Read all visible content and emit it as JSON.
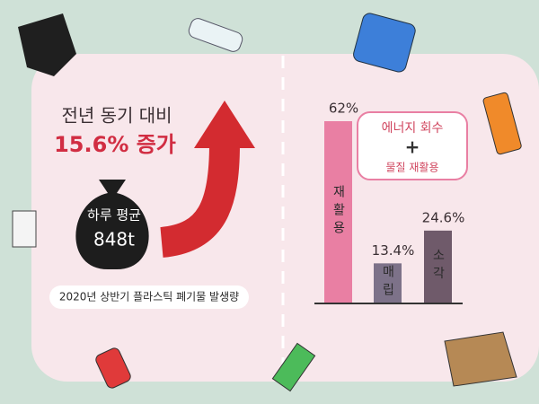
{
  "headline": {
    "line1": "전년 동기 대비",
    "line2": "15.6% 증가"
  },
  "daily": {
    "label": "하루 평균",
    "value": "848t"
  },
  "footnote": "2020년 상반기 플라스틱 폐기물 발생량",
  "callout": {
    "line1": "에너지 회수",
    "plus": "+",
    "line2": "물질 재활용"
  },
  "chart_data": {
    "type": "bar",
    "categories": [
      "재활용",
      "매립",
      "소각"
    ],
    "values": [
      62,
      13.4,
      24.6
    ],
    "value_labels": [
      "62%",
      "13.4%",
      "24.6%"
    ],
    "colors": [
      "#e97fa3",
      "#7d7289",
      "#6f5a6a"
    ]
  }
}
